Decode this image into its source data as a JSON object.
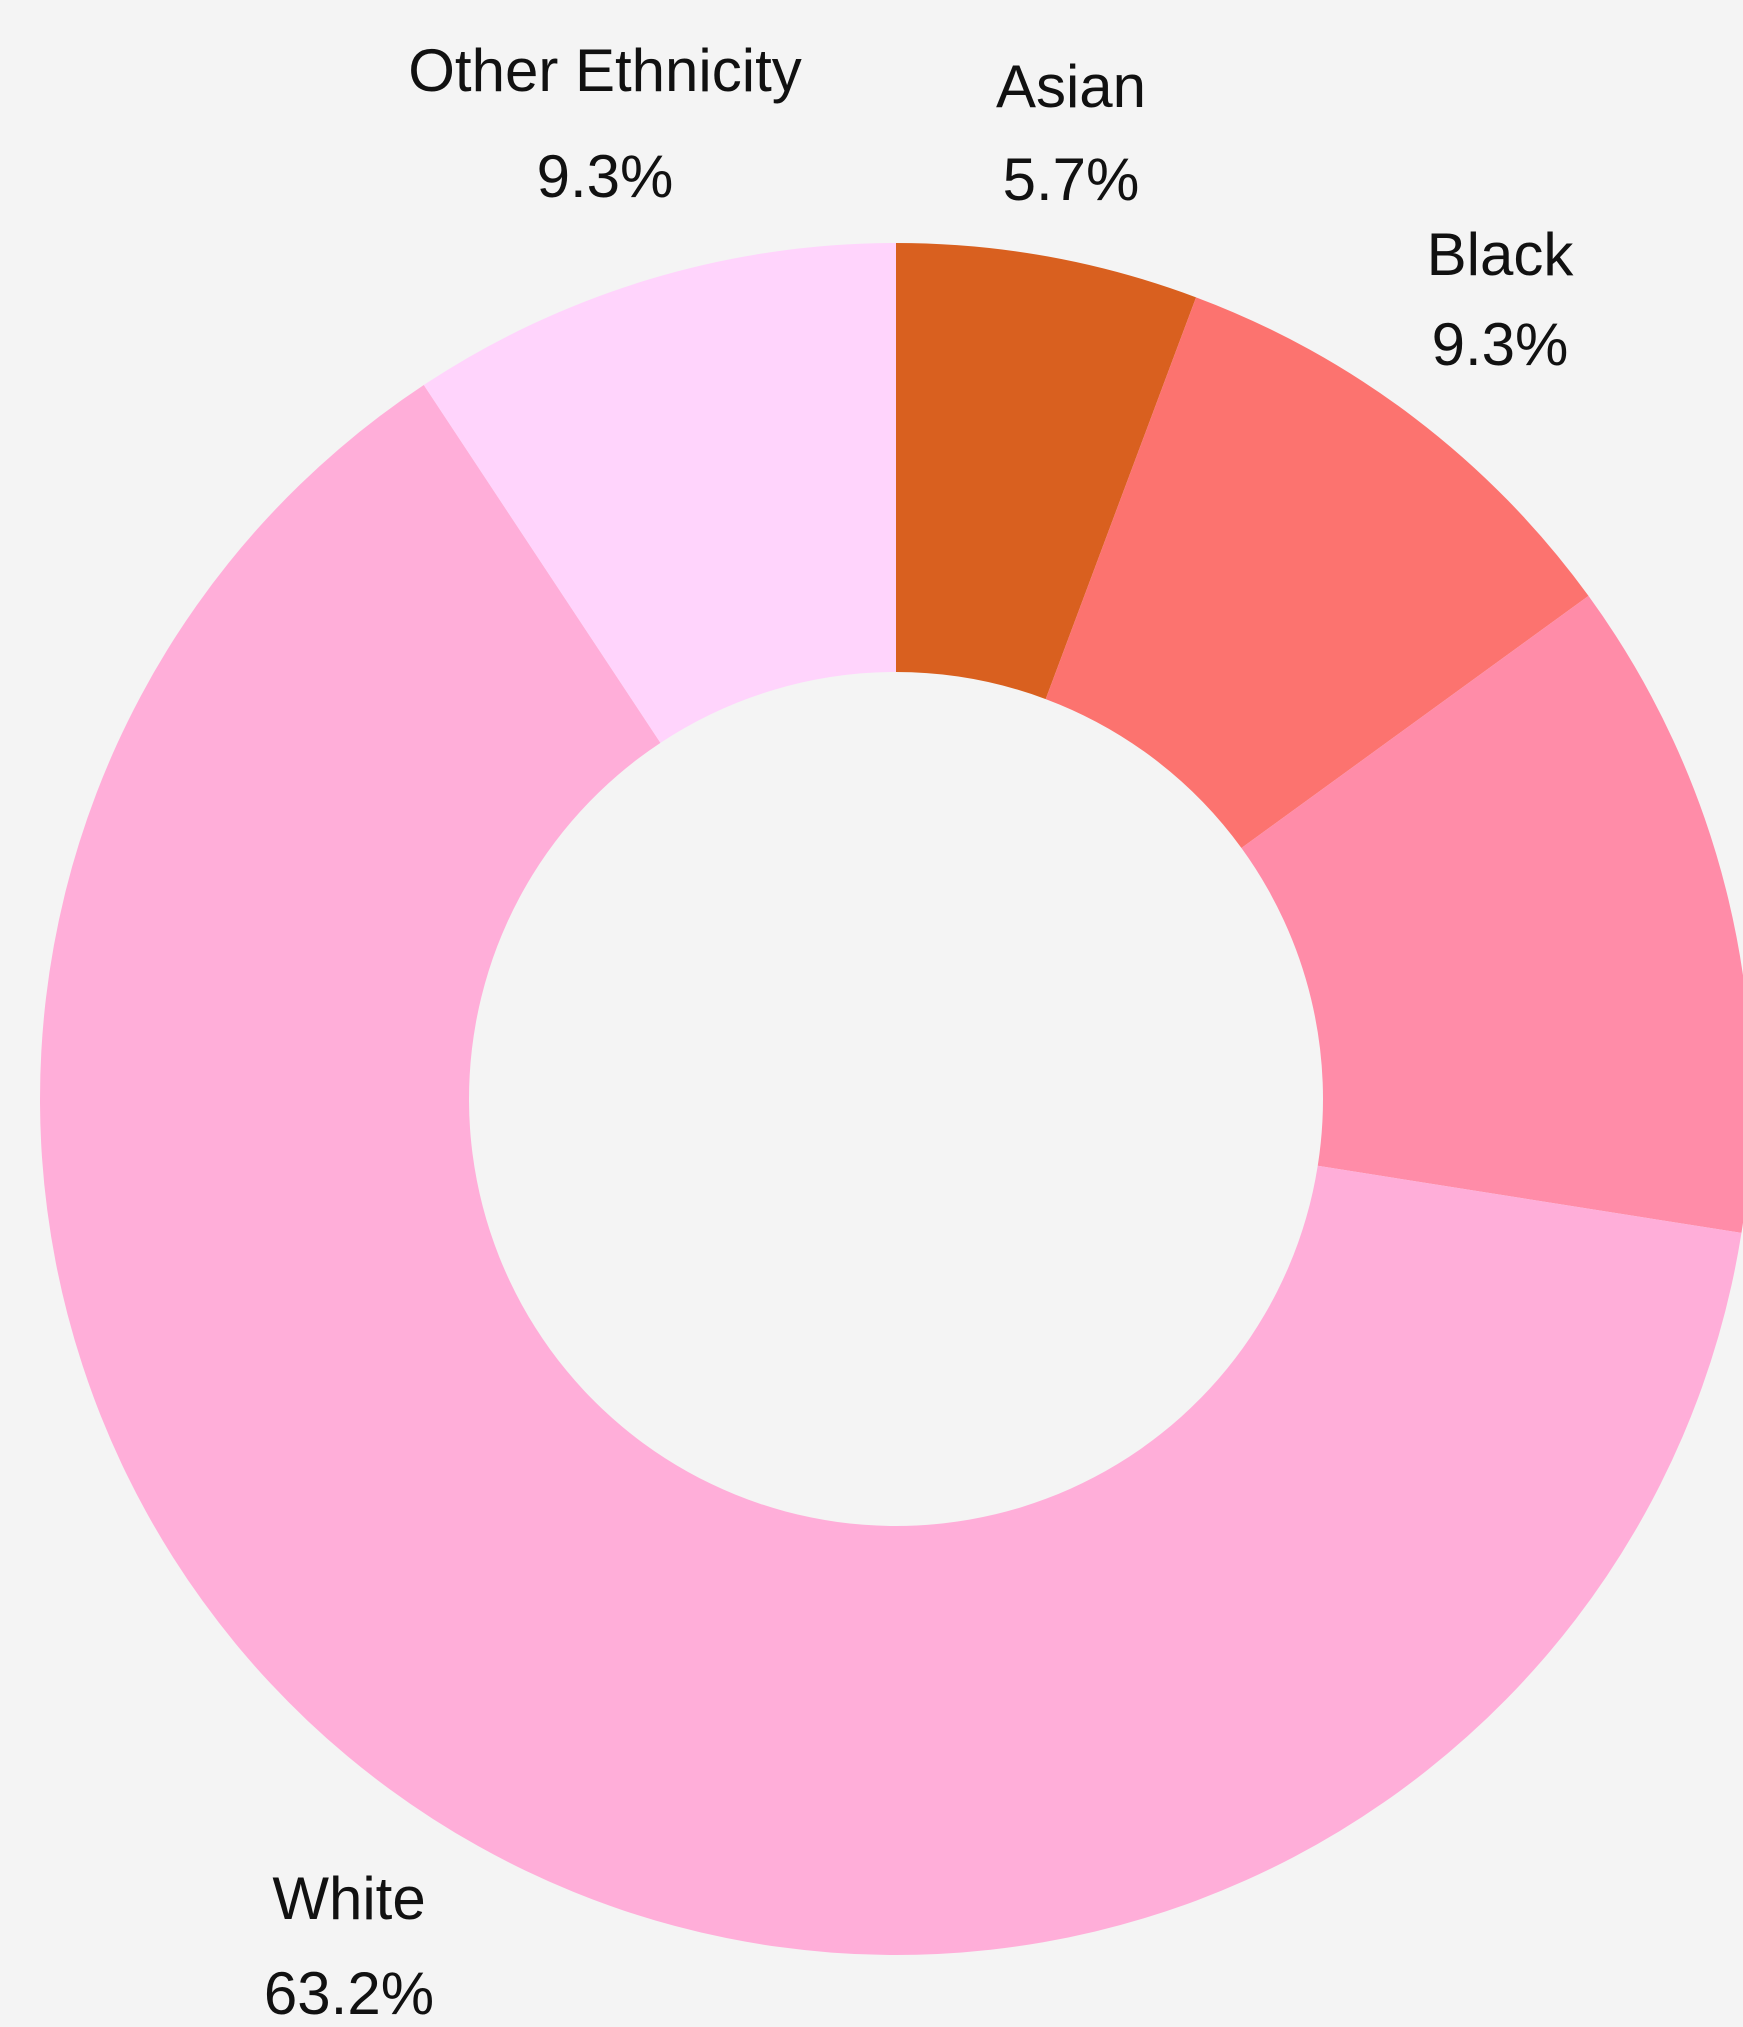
{
  "chart_data": {
    "type": "donut",
    "categories": [
      "Asian",
      "Black",
      null,
      "White",
      "Other Ethnicity"
    ],
    "values": [
      5.7,
      9.3,
      12.5,
      63.2,
      9.3
    ],
    "value_labels": [
      "5.7%",
      "9.3%",
      null,
      "63.2%",
      "9.3%"
    ],
    "colors": [
      "#d9601f",
      "#fc736f",
      "#ff8ca8",
      "#ffaed9",
      "#ffd4fc"
    ]
  }
}
